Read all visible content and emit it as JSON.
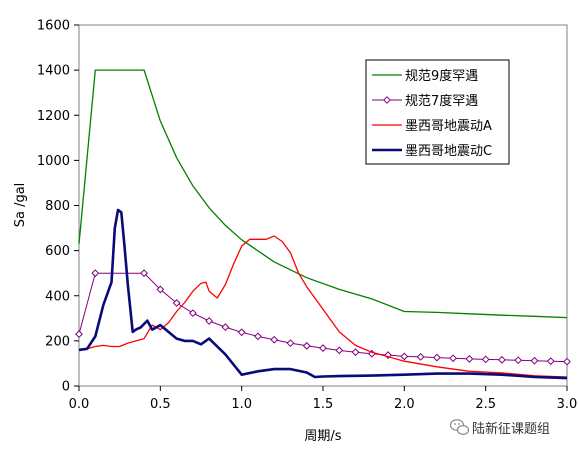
{
  "watermark": {
    "text": "陆新征课题组",
    "icon": "wechat-icon"
  },
  "chart_data": {
    "type": "line",
    "title": "",
    "xlabel": "周期/s",
    "ylabel": "Sa /gal",
    "xlim": [
      0,
      3.0
    ],
    "ylim": [
      0,
      1600
    ],
    "xticks": [
      "0.0",
      "0.5",
      "1.0",
      "1.5",
      "2.0",
      "2.5",
      "3.0"
    ],
    "yticks": [
      "0",
      "200",
      "400",
      "600",
      "800",
      "1000",
      "1200",
      "1400",
      "1600"
    ],
    "grid": false,
    "legend_position": "top-right",
    "series": [
      {
        "name": "规范9度罕遇",
        "color": "#008000",
        "marker": "none",
        "width": 1.3,
        "x": [
          0,
          0.1,
          0.4,
          0.5,
          0.6,
          0.7,
          0.8,
          0.9,
          1.0,
          1.2,
          1.4,
          1.6,
          1.8,
          2.0,
          2.2,
          2.4,
          2.6,
          2.8,
          3.0
        ],
        "y": [
          630,
          1400,
          1400,
          1175,
          1012,
          887,
          790,
          712,
          648,
          550,
          480,
          428,
          386,
          330,
          326,
          320,
          314,
          309,
          303
        ]
      },
      {
        "name": "规范7度罕遇",
        "color": "#800080",
        "marker": "diamond",
        "width": 1.0,
        "x": [
          0,
          0.1,
          0.4,
          0.5,
          0.6,
          0.7,
          0.8,
          0.9,
          1.0,
          1.1,
          1.2,
          1.3,
          1.4,
          1.5,
          1.6,
          1.7,
          1.8,
          1.9,
          2.0,
          2.1,
          2.2,
          2.3,
          2.4,
          2.5,
          2.6,
          2.7,
          2.8,
          2.9,
          3.0
        ],
        "y": [
          230,
          500,
          500,
          428,
          368,
          323,
          288,
          261,
          238,
          220,
          205,
          190,
          178,
          168,
          158,
          150,
          143,
          137,
          131,
          129,
          126,
          123,
          120,
          118,
          116,
          114,
          112,
          110,
          108
        ]
      },
      {
        "name": "墨西哥地震动A",
        "color": "#ff0000",
        "marker": "none",
        "width": 1.3,
        "x": [
          0,
          0.05,
          0.1,
          0.15,
          0.2,
          0.25,
          0.3,
          0.35,
          0.4,
          0.45,
          0.5,
          0.55,
          0.6,
          0.65,
          0.7,
          0.75,
          0.78,
          0.8,
          0.85,
          0.9,
          0.95,
          1.0,
          1.05,
          1.1,
          1.15,
          1.2,
          1.25,
          1.3,
          1.35,
          1.4,
          1.5,
          1.6,
          1.7,
          1.8,
          2.0,
          2.2,
          2.4,
          2.6,
          2.8,
          3.0
        ],
        "y": [
          160,
          165,
          175,
          180,
          175,
          175,
          190,
          200,
          210,
          270,
          250,
          280,
          330,
          370,
          420,
          455,
          460,
          420,
          390,
          450,
          540,
          620,
          650,
          650,
          650,
          665,
          640,
          590,
          500,
          440,
          340,
          240,
          180,
          150,
          110,
          85,
          65,
          58,
          45,
          40
        ]
      },
      {
        "name": "墨西哥地震动C",
        "color": "#0a0a78",
        "marker": "none",
        "width": 2.6,
        "x": [
          0,
          0.05,
          0.1,
          0.15,
          0.18,
          0.2,
          0.22,
          0.24,
          0.26,
          0.28,
          0.3,
          0.33,
          0.35,
          0.38,
          0.42,
          0.45,
          0.5,
          0.55,
          0.6,
          0.65,
          0.7,
          0.75,
          0.8,
          0.9,
          1.0,
          1.1,
          1.2,
          1.3,
          1.4,
          1.45,
          1.5,
          1.6,
          1.8,
          2.0,
          2.2,
          2.4,
          2.6,
          2.8,
          3.0
        ],
        "y": [
          160,
          165,
          220,
          360,
          420,
          460,
          700,
          780,
          770,
          620,
          450,
          240,
          250,
          260,
          290,
          250,
          270,
          240,
          210,
          200,
          200,
          185,
          210,
          140,
          50,
          65,
          75,
          75,
          60,
          40,
          42,
          44,
          46,
          50,
          55,
          55,
          50,
          40,
          35
        ]
      }
    ]
  }
}
